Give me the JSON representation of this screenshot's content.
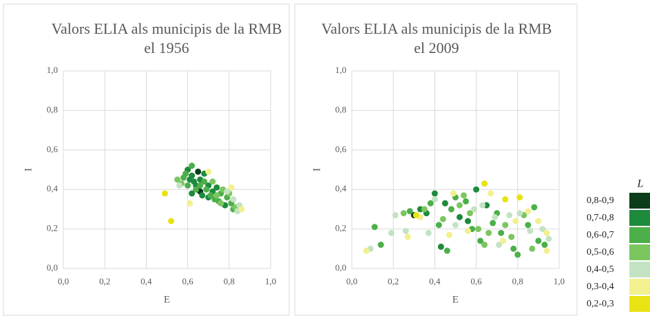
{
  "chart_data": [
    {
      "type": "scatter",
      "title": "Valors ELIA als municipis de la RMB el 1956",
      "xlabel": "E",
      "ylabel": "I",
      "xlim": [
        0,
        1
      ],
      "ylim": [
        0,
        1
      ],
      "grid": true,
      "xticks": [
        {
          "value": 0,
          "label": "0,0"
        },
        {
          "value": 0.2,
          "label": "0,2"
        },
        {
          "value": 0.4,
          "label": "0,4"
        },
        {
          "value": 0.6,
          "label": "0,6"
        },
        {
          "value": 0.8,
          "label": "0,8"
        },
        {
          "value": 1,
          "label": "1,0"
        }
      ],
      "yticks": [
        {
          "value": 0,
          "label": "0,0"
        },
        {
          "value": 0.2,
          "label": "0,2"
        },
        {
          "value": 0.4,
          "label": "0,4"
        },
        {
          "value": 0.6,
          "label": "0,6"
        },
        {
          "value": 0.8,
          "label": "0,8"
        },
        {
          "value": 1,
          "label": "1,0"
        }
      ],
      "series": [
        {
          "color": "#0b3d1a",
          "x": [
            0.65,
            0.65,
            0.66
          ],
          "y": [
            0.49,
            0.4,
            0.39
          ]
        },
        {
          "color": "#1e8a3c",
          "x": [
            0.6,
            0.62,
            0.63,
            0.64,
            0.66,
            0.68,
            0.7,
            0.72,
            0.74,
            0.62,
            0.67,
            0.78,
            0.7,
            0.61
          ],
          "y": [
            0.5,
            0.47,
            0.44,
            0.42,
            0.45,
            0.48,
            0.42,
            0.39,
            0.41,
            0.38,
            0.37,
            0.32,
            0.36,
            0.45
          ]
        },
        {
          "color": "#4caf4a",
          "x": [
            0.58,
            0.59,
            0.62,
            0.64,
            0.66,
            0.69,
            0.71,
            0.73,
            0.75,
            0.76,
            0.79,
            0.81,
            0.82,
            0.6,
            0.68
          ],
          "y": [
            0.46,
            0.48,
            0.52,
            0.4,
            0.42,
            0.4,
            0.37,
            0.35,
            0.34,
            0.38,
            0.36,
            0.33,
            0.3,
            0.42,
            0.44
          ]
        },
        {
          "color": "#7cc660",
          "x": [
            0.55,
            0.57,
            0.72,
            0.77,
            0.8,
            0.83,
            0.76,
            0.74
          ],
          "y": [
            0.45,
            0.43,
            0.44,
            0.4,
            0.38,
            0.31,
            0.33,
            0.37
          ]
        },
        {
          "color": "#c3e3c3",
          "x": [
            0.56,
            0.84,
            0.85,
            0.82,
            0.79
          ],
          "y": [
            0.42,
            0.29,
            0.32,
            0.35,
            0.39
          ]
        },
        {
          "color": "#f2f08f",
          "x": [
            0.61,
            0.7,
            0.86,
            0.81
          ],
          "y": [
            0.33,
            0.49,
            0.3,
            0.41
          ]
        },
        {
          "color": "#e8e312",
          "x": [
            0.49,
            0.52
          ],
          "y": [
            0.38,
            0.24
          ]
        }
      ]
    },
    {
      "type": "scatter",
      "title": "Valors ELIA als municipis de la RMB el 2009",
      "xlabel": "E",
      "ylabel": "I",
      "xlim": [
        0,
        1
      ],
      "ylim": [
        0,
        1
      ],
      "grid": true,
      "legend_title": "L",
      "xticks": [
        {
          "value": 0,
          "label": "0,0"
        },
        {
          "value": 0.2,
          "label": "0,2"
        },
        {
          "value": 0.4,
          "label": "0,4"
        },
        {
          "value": 0.6,
          "label": "0,6"
        },
        {
          "value": 0.8,
          "label": "0,8"
        },
        {
          "value": 1,
          "label": "1,0"
        }
      ],
      "yticks": [
        {
          "value": 0,
          "label": "0,0"
        },
        {
          "value": 0.2,
          "label": "0,2"
        },
        {
          "value": 0.4,
          "label": "0,4"
        },
        {
          "value": 0.6,
          "label": "0,6"
        },
        {
          "value": 0.8,
          "label": "0,8"
        },
        {
          "value": 1,
          "label": "1,0"
        }
      ],
      "series": [
        {
          "name": "0,8-0,9",
          "color": "#0b3d1a",
          "x": [
            0.3
          ],
          "y": [
            0.27
          ]
        },
        {
          "name": "0,7-0,8",
          "color": "#1e8a3c",
          "x": [
            0.36,
            0.4,
            0.43,
            0.45,
            0.52,
            0.6,
            0.65,
            0.33,
            0.56
          ],
          "y": [
            0.28,
            0.38,
            0.11,
            0.33,
            0.26,
            0.4,
            0.32,
            0.3,
            0.24
          ]
        },
        {
          "name": "0,6-0,7",
          "color": "#4caf4a",
          "x": [
            0.11,
            0.14,
            0.28,
            0.38,
            0.42,
            0.46,
            0.48,
            0.5,
            0.55,
            0.58,
            0.62,
            0.68,
            0.72,
            0.78,
            0.8,
            0.85,
            0.88,
            0.9,
            0.93,
            0.7
          ],
          "y": [
            0.21,
            0.12,
            0.29,
            0.33,
            0.22,
            0.09,
            0.3,
            0.36,
            0.34,
            0.2,
            0.14,
            0.23,
            0.18,
            0.1,
            0.07,
            0.22,
            0.31,
            0.14,
            0.12,
            0.28
          ]
        },
        {
          "name": "0,5-0,6",
          "color": "#7cc660",
          "x": [
            0.25,
            0.35,
            0.44,
            0.52,
            0.57,
            0.61,
            0.66,
            0.74,
            0.77,
            0.83,
            0.87,
            0.64,
            0.54
          ],
          "y": [
            0.28,
            0.3,
            0.25,
            0.32,
            0.28,
            0.2,
            0.18,
            0.22,
            0.16,
            0.27,
            0.1,
            0.12,
            0.37
          ]
        },
        {
          "name": "0,4-0,5",
          "color": "#c3e3c3",
          "x": [
            0.09,
            0.19,
            0.21,
            0.26,
            0.37,
            0.4,
            0.5,
            0.59,
            0.63,
            0.69,
            0.71,
            0.76,
            0.81,
            0.86,
            0.92,
            0.95
          ],
          "y": [
            0.1,
            0.18,
            0.27,
            0.19,
            0.18,
            0.35,
            0.22,
            0.3,
            0.32,
            0.26,
            0.12,
            0.27,
            0.28,
            0.19,
            0.2,
            0.15
          ]
        },
        {
          "name": "0,3-0,4",
          "color": "#f2f08f",
          "x": [
            0.07,
            0.27,
            0.33,
            0.47,
            0.49,
            0.56,
            0.67,
            0.73,
            0.79,
            0.85,
            0.94,
            0.94,
            0.9
          ],
          "y": [
            0.09,
            0.16,
            0.26,
            0.17,
            0.38,
            0.19,
            0.38,
            0.14,
            0.24,
            0.29,
            0.18,
            0.09,
            0.24
          ]
        },
        {
          "name": "0,2-0,3",
          "color": "#e8e312",
          "x": [
            0.64,
            0.74,
            0.81,
            0.31
          ],
          "y": [
            0.43,
            0.35,
            0.36,
            0.27
          ]
        }
      ]
    }
  ]
}
